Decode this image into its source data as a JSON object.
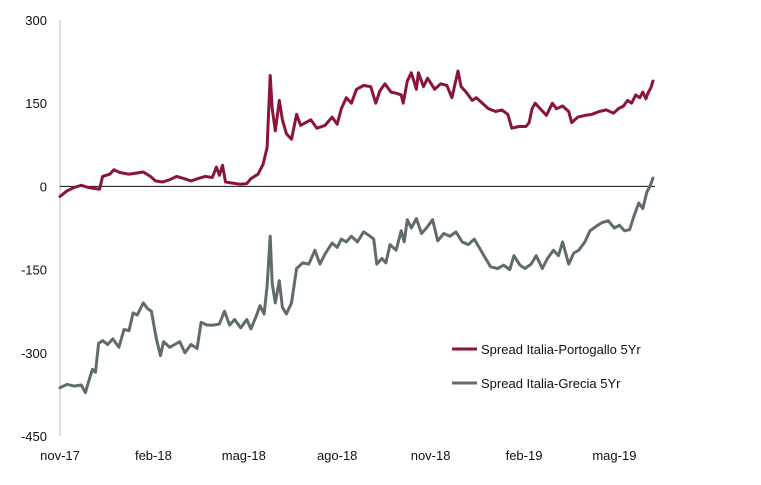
{
  "chart_data": {
    "type": "line",
    "ylim": [
      -450,
      300
    ],
    "yticks": [
      "300",
      "150",
      "0",
      "-150",
      "-300",
      "-450"
    ],
    "ytick_values": [
      300,
      150,
      0,
      -150,
      -300,
      -450
    ],
    "xlim": [
      "2017-11-01",
      "2019-06-10"
    ],
    "xticks": [
      "nov-17",
      "feb-18",
      "mag-18",
      "ago-18",
      "nov-18",
      "feb-19",
      "mag-19"
    ],
    "xtick_dates": [
      "2017-11-01",
      "2018-02-01",
      "2018-05-01",
      "2018-08-01",
      "2018-11-01",
      "2019-02-01",
      "2019-05-01"
    ],
    "grid": false,
    "legend_position": "bottom-right",
    "series": [
      {
        "name": "Spread Italia-Portogallo 5Yr",
        "color": "#8b1538",
        "points": [
          [
            "2017-11-01",
            -18
          ],
          [
            "2017-11-08",
            -8
          ],
          [
            "2017-11-15",
            -2
          ],
          [
            "2017-11-22",
            2
          ],
          [
            "2017-11-29",
            -2
          ],
          [
            "2017-12-06",
            -4
          ],
          [
            "2017-12-10",
            -5
          ],
          [
            "2017-12-13",
            18
          ],
          [
            "2017-12-20",
            22
          ],
          [
            "2017-12-24",
            30
          ],
          [
            "2017-12-30",
            25
          ],
          [
            "2018-01-08",
            22
          ],
          [
            "2018-01-15",
            24
          ],
          [
            "2018-01-22",
            26
          ],
          [
            "2018-01-29",
            18
          ],
          [
            "2018-02-03",
            10
          ],
          [
            "2018-02-10",
            8
          ],
          [
            "2018-02-17",
            12
          ],
          [
            "2018-02-24",
            18
          ],
          [
            "2018-03-03",
            14
          ],
          [
            "2018-03-10",
            10
          ],
          [
            "2018-03-17",
            14
          ],
          [
            "2018-03-24",
            18
          ],
          [
            "2018-03-31",
            16
          ],
          [
            "2018-04-04",
            35
          ],
          [
            "2018-04-07",
            20
          ],
          [
            "2018-04-10",
            38
          ],
          [
            "2018-04-13",
            8
          ],
          [
            "2018-04-20",
            6
          ],
          [
            "2018-04-27",
            4
          ],
          [
            "2018-05-04",
            5
          ],
          [
            "2018-05-08",
            14
          ],
          [
            "2018-05-15",
            22
          ],
          [
            "2018-05-20",
            40
          ],
          [
            "2018-05-24",
            70
          ],
          [
            "2018-05-27",
            200
          ],
          [
            "2018-05-29",
            140
          ],
          [
            "2018-06-01",
            100
          ],
          [
            "2018-06-05",
            155
          ],
          [
            "2018-06-08",
            120
          ],
          [
            "2018-06-12",
            95
          ],
          [
            "2018-06-17",
            85
          ],
          [
            "2018-06-22",
            130
          ],
          [
            "2018-06-26",
            110
          ],
          [
            "2018-07-01",
            115
          ],
          [
            "2018-07-06",
            120
          ],
          [
            "2018-07-12",
            105
          ],
          [
            "2018-07-20",
            110
          ],
          [
            "2018-07-27",
            125
          ],
          [
            "2018-08-01",
            112
          ],
          [
            "2018-08-05",
            140
          ],
          [
            "2018-08-10",
            160
          ],
          [
            "2018-08-15",
            150
          ],
          [
            "2018-08-20",
            175
          ],
          [
            "2018-08-27",
            182
          ],
          [
            "2018-09-03",
            180
          ],
          [
            "2018-09-08",
            150
          ],
          [
            "2018-09-12",
            172
          ],
          [
            "2018-09-17",
            185
          ],
          [
            "2018-09-23",
            170
          ],
          [
            "2018-09-28",
            168
          ],
          [
            "2018-10-03",
            165
          ],
          [
            "2018-10-05",
            150
          ],
          [
            "2018-10-09",
            190
          ],
          [
            "2018-10-13",
            205
          ],
          [
            "2018-10-18",
            175
          ],
          [
            "2018-10-20",
            205
          ],
          [
            "2018-10-25",
            180
          ],
          [
            "2018-10-29",
            195
          ],
          [
            "2018-11-05",
            175
          ],
          [
            "2018-11-11",
            185
          ],
          [
            "2018-11-17",
            182
          ],
          [
            "2018-11-22",
            160
          ],
          [
            "2018-11-28",
            208
          ],
          [
            "2018-12-01",
            180
          ],
          [
            "2018-12-06",
            170
          ],
          [
            "2018-12-12",
            155
          ],
          [
            "2018-12-16",
            160
          ],
          [
            "2018-12-22",
            150
          ],
          [
            "2018-12-28",
            140
          ],
          [
            "2019-01-04",
            135
          ],
          [
            "2019-01-10",
            138
          ],
          [
            "2019-01-16",
            130
          ],
          [
            "2019-01-20",
            105
          ],
          [
            "2019-01-27",
            108
          ],
          [
            "2019-02-03",
            108
          ],
          [
            "2019-02-06",
            115
          ],
          [
            "2019-02-09",
            140
          ],
          [
            "2019-02-12",
            150
          ],
          [
            "2019-02-16",
            142
          ],
          [
            "2019-02-23",
            128
          ],
          [
            "2019-03-01",
            150
          ],
          [
            "2019-03-05",
            140
          ],
          [
            "2019-03-11",
            145
          ],
          [
            "2019-03-17",
            135
          ],
          [
            "2019-03-20",
            115
          ],
          [
            "2019-03-26",
            125
          ],
          [
            "2019-04-02",
            128
          ],
          [
            "2019-04-09",
            130
          ],
          [
            "2019-04-16",
            135
          ],
          [
            "2019-04-23",
            138
          ],
          [
            "2019-04-30",
            132
          ],
          [
            "2019-05-05",
            140
          ],
          [
            "2019-05-10",
            145
          ],
          [
            "2019-05-14",
            155
          ],
          [
            "2019-05-18",
            150
          ],
          [
            "2019-05-22",
            165
          ],
          [
            "2019-05-26",
            160
          ],
          [
            "2019-05-29",
            170
          ],
          [
            "2019-06-01",
            158
          ],
          [
            "2019-06-03",
            168
          ],
          [
            "2019-06-06",
            178
          ],
          [
            "2019-06-08",
            190
          ]
        ]
      },
      {
        "name": "Spread Italia-Grecia 5Yr",
        "color": "#5f6b6d",
        "points": [
          [
            "2017-11-01",
            -363
          ],
          [
            "2017-11-08",
            -357
          ],
          [
            "2017-11-15",
            -360
          ],
          [
            "2017-11-22",
            -358
          ],
          [
            "2017-11-26",
            -372
          ],
          [
            "2017-11-30",
            -347
          ],
          [
            "2017-12-03",
            -330
          ],
          [
            "2017-12-06",
            -335
          ],
          [
            "2017-12-09",
            -283
          ],
          [
            "2017-12-13",
            -278
          ],
          [
            "2017-12-18",
            -285
          ],
          [
            "2017-12-23",
            -275
          ],
          [
            "2017-12-29",
            -290
          ],
          [
            "2018-01-03",
            -258
          ],
          [
            "2018-01-08",
            -260
          ],
          [
            "2018-01-12",
            -228
          ],
          [
            "2018-01-16",
            -232
          ],
          [
            "2018-01-22",
            -210
          ],
          [
            "2018-01-26",
            -220
          ],
          [
            "2018-01-30",
            -225
          ],
          [
            "2018-02-04",
            -276
          ],
          [
            "2018-02-08",
            -305
          ],
          [
            "2018-02-11",
            -280
          ],
          [
            "2018-02-17",
            -290
          ],
          [
            "2018-02-22",
            -285
          ],
          [
            "2018-02-27",
            -280
          ],
          [
            "2018-03-04",
            -300
          ],
          [
            "2018-03-10",
            -285
          ],
          [
            "2018-03-16",
            -292
          ],
          [
            "2018-03-20",
            -245
          ],
          [
            "2018-03-26",
            -250
          ],
          [
            "2018-04-01",
            -250
          ],
          [
            "2018-04-07",
            -248
          ],
          [
            "2018-04-12",
            -225
          ],
          [
            "2018-04-17",
            -250
          ],
          [
            "2018-04-22",
            -240
          ],
          [
            "2018-04-28",
            -255
          ],
          [
            "2018-05-04",
            -240
          ],
          [
            "2018-05-08",
            -257
          ],
          [
            "2018-05-13",
            -235
          ],
          [
            "2018-05-17",
            -215
          ],
          [
            "2018-05-21",
            -230
          ],
          [
            "2018-05-24",
            -180
          ],
          [
            "2018-05-27",
            -90
          ],
          [
            "2018-05-29",
            -175
          ],
          [
            "2018-06-01",
            -210
          ],
          [
            "2018-06-05",
            -170
          ],
          [
            "2018-06-08",
            -218
          ],
          [
            "2018-06-12",
            -230
          ],
          [
            "2018-06-17",
            -210
          ],
          [
            "2018-06-22",
            -148
          ],
          [
            "2018-06-28",
            -138
          ],
          [
            "2018-07-04",
            -140
          ],
          [
            "2018-07-10",
            -115
          ],
          [
            "2018-07-15",
            -140
          ],
          [
            "2018-07-20",
            -122
          ],
          [
            "2018-07-27",
            -102
          ],
          [
            "2018-08-01",
            -110
          ],
          [
            "2018-08-05",
            -95
          ],
          [
            "2018-08-10",
            -100
          ],
          [
            "2018-08-15",
            -90
          ],
          [
            "2018-08-21",
            -100
          ],
          [
            "2018-08-27",
            -82
          ],
          [
            "2018-09-01",
            -88
          ],
          [
            "2018-09-06",
            -95
          ],
          [
            "2018-09-09",
            -140
          ],
          [
            "2018-09-14",
            -130
          ],
          [
            "2018-09-18",
            -138
          ],
          [
            "2018-09-22",
            -105
          ],
          [
            "2018-09-28",
            -115
          ],
          [
            "2018-10-03",
            -80
          ],
          [
            "2018-10-06",
            -100
          ],
          [
            "2018-10-09",
            -60
          ],
          [
            "2018-10-13",
            -75
          ],
          [
            "2018-10-18",
            -58
          ],
          [
            "2018-10-23",
            -85
          ],
          [
            "2018-10-28",
            -75
          ],
          [
            "2018-11-03",
            -60
          ],
          [
            "2018-11-08",
            -98
          ],
          [
            "2018-11-14",
            -85
          ],
          [
            "2018-11-20",
            -90
          ],
          [
            "2018-11-26",
            -82
          ],
          [
            "2018-12-02",
            -100
          ],
          [
            "2018-12-08",
            -105
          ],
          [
            "2018-12-14",
            -95
          ],
          [
            "2018-12-22",
            -120
          ],
          [
            "2018-12-30",
            -145
          ],
          [
            "2019-01-06",
            -148
          ],
          [
            "2019-01-12",
            -142
          ],
          [
            "2019-01-18",
            -150
          ],
          [
            "2019-01-22",
            -125
          ],
          [
            "2019-01-28",
            -142
          ],
          [
            "2019-02-02",
            -148
          ],
          [
            "2019-02-08",
            -140
          ],
          [
            "2019-02-13",
            -125
          ],
          [
            "2019-02-19",
            -148
          ],
          [
            "2019-02-24",
            -130
          ],
          [
            "2019-03-02",
            -115
          ],
          [
            "2019-03-07",
            -125
          ],
          [
            "2019-03-11",
            -100
          ],
          [
            "2019-03-17",
            -140
          ],
          [
            "2019-03-22",
            -120
          ],
          [
            "2019-03-27",
            -115
          ],
          [
            "2019-04-02",
            -100
          ],
          [
            "2019-04-07",
            -80
          ],
          [
            "2019-04-13",
            -72
          ],
          [
            "2019-04-19",
            -65
          ],
          [
            "2019-04-25",
            -62
          ],
          [
            "2019-05-01",
            -75
          ],
          [
            "2019-05-06",
            -70
          ],
          [
            "2019-05-11",
            -80
          ],
          [
            "2019-05-16",
            -78
          ],
          [
            "2019-05-20",
            -55
          ],
          [
            "2019-05-25",
            -30
          ],
          [
            "2019-05-29",
            -40
          ],
          [
            "2019-06-02",
            -10
          ],
          [
            "2019-06-05",
            0
          ],
          [
            "2019-06-08",
            15
          ]
        ]
      }
    ]
  }
}
